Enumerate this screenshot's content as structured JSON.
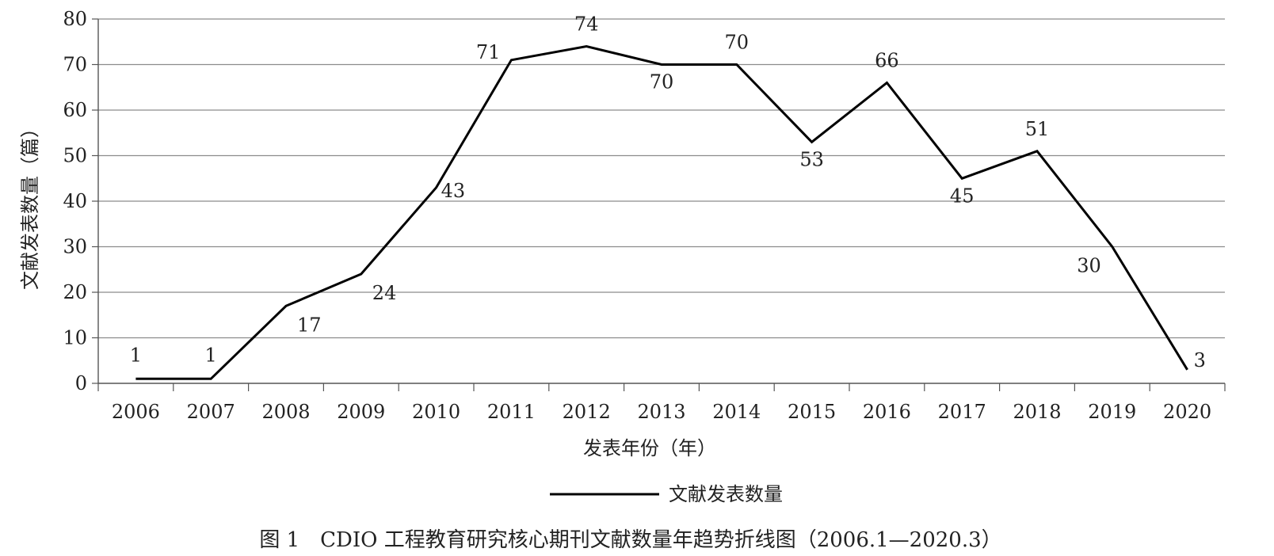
{
  "chart_data": {
    "type": "line",
    "ylabel": "文献发表数量（篇）",
    "xlabel": "发表年份（年）",
    "caption": "图 1　CDIO 工程教育研究核心期刊文献数量年趋势折线图（2006.1—2020.3）",
    "categories": [
      "2006",
      "2007",
      "2008",
      "2009",
      "2010",
      "2011",
      "2012",
      "2013",
      "2014",
      "2015",
      "2016",
      "2017",
      "2018",
      "2019",
      "2020"
    ],
    "series": [
      {
        "name": "文献发表数量",
        "values": [
          1,
          1,
          17,
          24,
          43,
          71,
          74,
          70,
          70,
          53,
          66,
          45,
          51,
          30,
          3
        ]
      }
    ],
    "ylim": [
      0,
      80
    ],
    "yticks": [
      0,
      10,
      20,
      30,
      40,
      50,
      60,
      70,
      80
    ],
    "grid": true,
    "legend": "bottom",
    "line_color": "#000000"
  }
}
